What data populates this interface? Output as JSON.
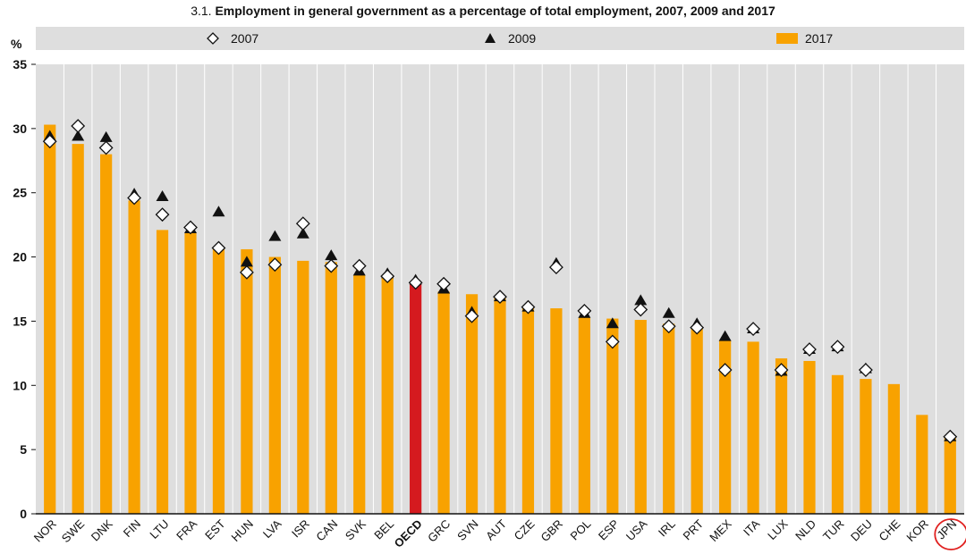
{
  "figure": {
    "number": "3.1.",
    "title": "Employment in general government as a percentage of total employment, 2007, 2009 and 2017"
  },
  "colors": {
    "plot_background": "#dedede",
    "bar": "#f8a200",
    "bar_highlight": "#d51a1f",
    "legend_band": "#dedede",
    "highlight_circle": "#e0201f"
  },
  "chart_data": {
    "type": "bar",
    "title": "Employment in general government as a percentage of total employment, 2007, 2009 and 2017",
    "ylabel": "%",
    "xlabel": "",
    "ylim": [
      0,
      35
    ],
    "yticks": [
      0,
      5,
      10,
      15,
      20,
      25,
      30,
      35
    ],
    "grid": "vertical",
    "legend_position": "top",
    "categories": [
      "NOR",
      "SWE",
      "DNK",
      "FIN",
      "LTU",
      "FRA",
      "EST",
      "HUN",
      "LVA",
      "ISR",
      "CAN",
      "SVK",
      "BEL",
      "OECD",
      "GRC",
      "SVN",
      "AUT",
      "CZE",
      "GBR",
      "POL",
      "ESP",
      "USA",
      "IRL",
      "PRT",
      "MEX",
      "ITA",
      "LUX",
      "NLD",
      "TUR",
      "DEU",
      "CHE",
      "KOR",
      "JPN"
    ],
    "highlight_category": "OECD",
    "circled_category": "JPN",
    "series": [
      {
        "name": "2007",
        "type": "marker-diamond",
        "values": [
          29.0,
          30.2,
          28.5,
          24.6,
          23.3,
          22.3,
          20.7,
          18.8,
          19.4,
          22.6,
          19.3,
          19.3,
          18.5,
          18.0,
          17.9,
          15.4,
          16.9,
          16.1,
          19.2,
          15.8,
          13.4,
          15.9,
          14.6,
          14.5,
          11.2,
          14.4,
          11.2,
          12.8,
          13.0,
          11.2,
          null,
          null,
          6.0
        ]
      },
      {
        "name": "2009",
        "type": "marker-triangle",
        "values": [
          29.4,
          29.4,
          29.3,
          24.9,
          24.7,
          22.2,
          23.5,
          19.6,
          21.6,
          21.8,
          20.1,
          18.9,
          18.7,
          18.2,
          17.5,
          15.7,
          16.9,
          16.1,
          19.5,
          15.6,
          14.8,
          16.6,
          15.6,
          14.8,
          13.8,
          14.4,
          11.1,
          12.8,
          13.0,
          11.3,
          null,
          null,
          6.0
        ]
      },
      {
        "name": "2017",
        "type": "bar",
        "values": [
          30.3,
          28.8,
          28.0,
          24.4,
          22.1,
          21.9,
          20.6,
          20.6,
          20.0,
          19.7,
          19.6,
          18.6,
          18.4,
          17.9,
          17.3,
          17.1,
          16.8,
          16.0,
          16.0,
          15.3,
          15.2,
          15.1,
          14.8,
          14.5,
          13.5,
          13.4,
          12.1,
          11.9,
          10.8,
          10.5,
          10.1,
          7.7,
          5.9
        ]
      }
    ]
  }
}
